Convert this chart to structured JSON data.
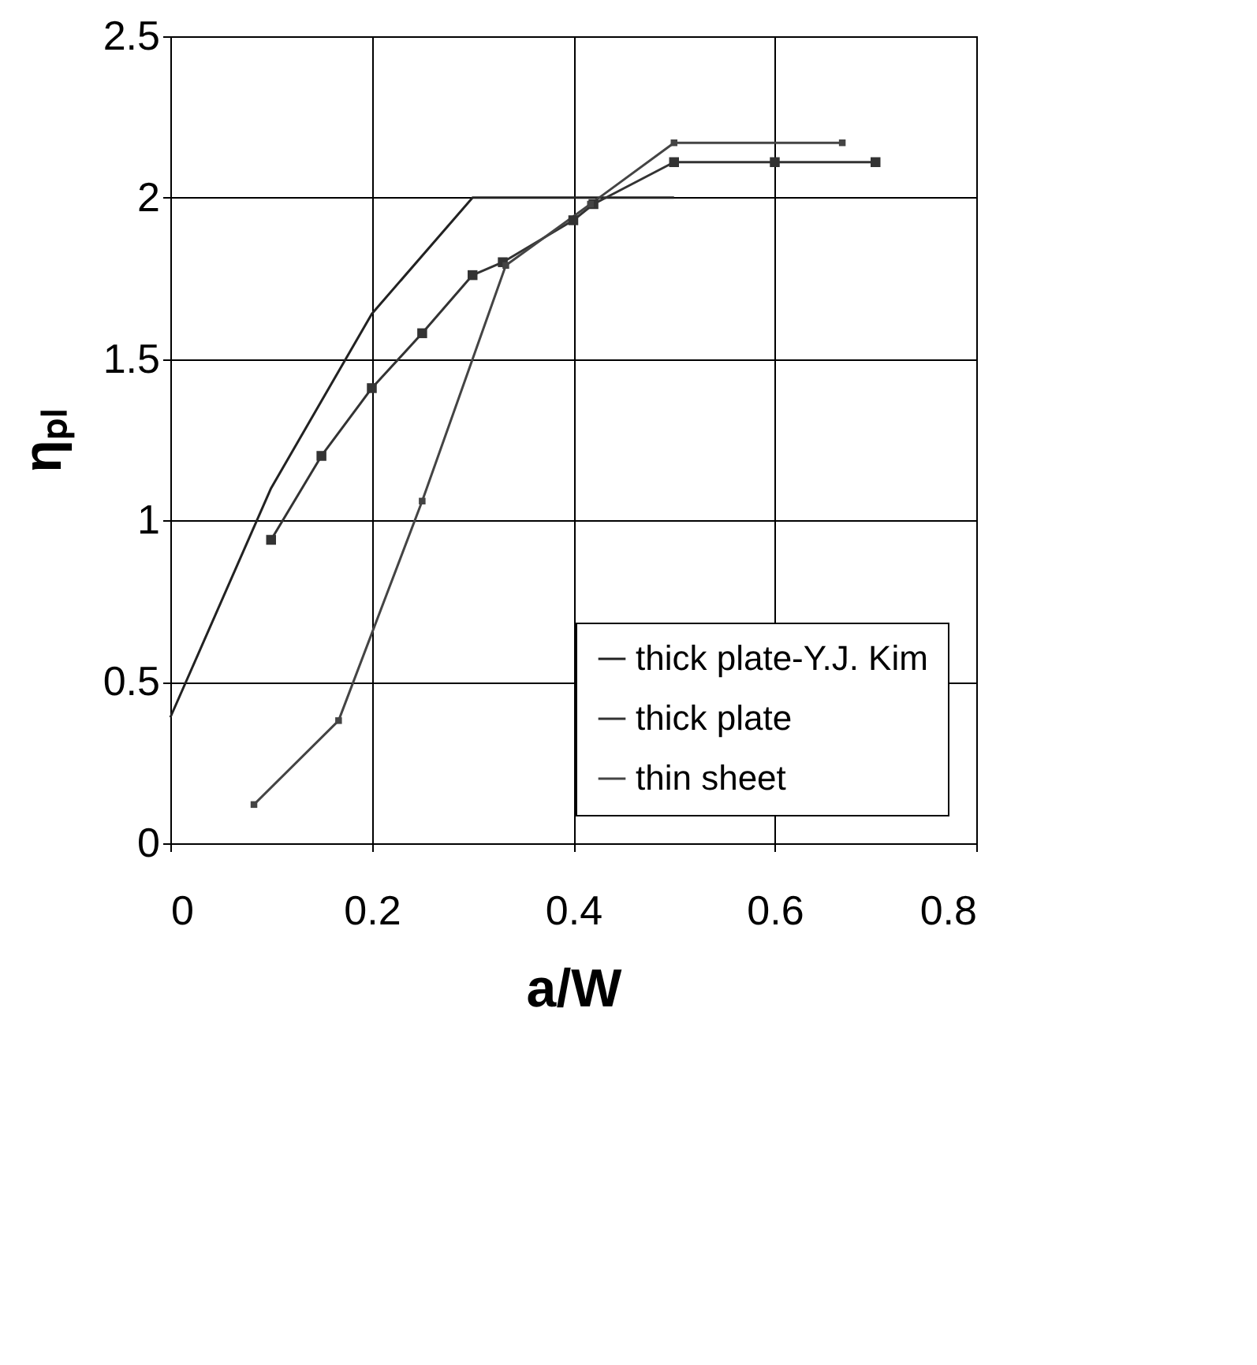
{
  "chart_data": {
    "type": "line",
    "xlabel": "a/W",
    "ylabel": "ηₚₗ",
    "xlim": [
      0,
      0.8
    ],
    "xticks": [
      0,
      0.2,
      0.4,
      0.6,
      0.8
    ],
    "ylim": [
      0,
      2.5
    ],
    "yticks": [
      0,
      0.5,
      1,
      1.5,
      2,
      2.5
    ],
    "grid": true,
    "legend": "bottom right",
    "series": [
      {
        "name": "thick plate-Y.J. Kim",
        "color": "#222222",
        "marker": "none",
        "x": [
          0,
          0.1,
          0.2,
          0.3,
          0.5
        ],
        "values": [
          0.39,
          1.1,
          1.64,
          2.0,
          2.0
        ]
      },
      {
        "name": "thick plate",
        "color": "#333333",
        "marker": "square",
        "x": [
          0.1,
          0.15,
          0.2,
          0.25,
          0.3,
          0.33,
          0.4,
          0.42,
          0.5,
          0.6,
          0.7
        ],
        "values": [
          0.94,
          1.2,
          1.41,
          1.58,
          1.76,
          1.8,
          1.93,
          1.98,
          2.11,
          2.11,
          2.11
        ]
      },
      {
        "name": "thin sheet",
        "color": "#444444",
        "marker": "square",
        "x": [
          0.083,
          0.167,
          0.25,
          0.333,
          0.417,
          0.5,
          0.667
        ],
        "values": [
          0.12,
          0.38,
          1.06,
          1.79,
          1.98,
          2.17,
          2.17
        ]
      }
    ]
  }
}
